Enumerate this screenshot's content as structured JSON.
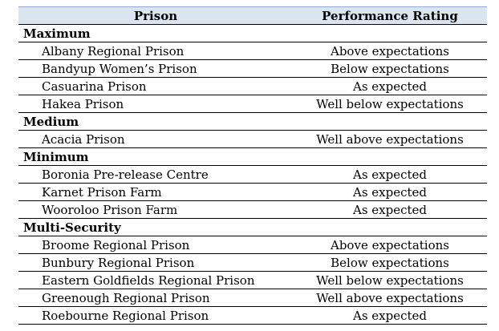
{
  "table": {
    "headers": {
      "prison": "Prison",
      "rating": "Performance Rating"
    },
    "groups": [
      {
        "category": "Maximum",
        "rows": [
          {
            "name": "Albany Regional Prison",
            "rating": "Above expectations"
          },
          {
            "name": "Bandyup Women’s Prison",
            "rating": "Below expectations"
          },
          {
            "name": "Casuarina Prison",
            "rating": "As expected"
          },
          {
            "name": "Hakea Prison",
            "rating": "Well below expectations"
          }
        ]
      },
      {
        "category": "Medium",
        "rows": [
          {
            "name": "Acacia Prison",
            "rating": "Well above expectations"
          }
        ]
      },
      {
        "category": "Minimum",
        "rows": [
          {
            "name": "Boronia Pre-release Centre",
            "rating": "As expected"
          },
          {
            "name": "Karnet Prison Farm",
            "rating": "As expected"
          },
          {
            "name": "Wooroloo Prison Farm",
            "rating": "As expected"
          }
        ]
      },
      {
        "category": "Multi-Security",
        "rows": [
          {
            "name": "Broome Regional Prison",
            "rating": "Above expectations"
          },
          {
            "name": "Bunbury Regional Prison",
            "rating": "Below expectations"
          },
          {
            "name": "Eastern Goldfields Regional Prison",
            "rating": "Well below expectations"
          },
          {
            "name": "Greenough Regional Prison",
            "rating": "Well above expectations"
          },
          {
            "name": "Roebourne Regional Prison",
            "rating": "As expected"
          }
        ]
      }
    ]
  },
  "colors": {
    "header_background": "#dbe5f1",
    "header_top_border": "#8eaadb",
    "row_border": "#000000"
  }
}
